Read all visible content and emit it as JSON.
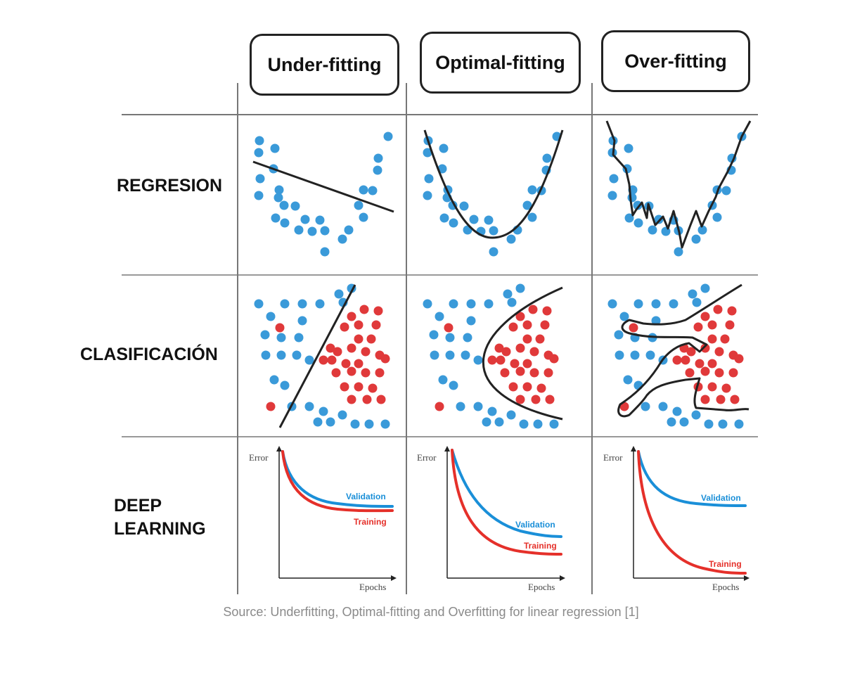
{
  "columns": [
    {
      "label": "Under-fitting"
    },
    {
      "label": "Optimal-fitting"
    },
    {
      "label": "Over-fitting"
    }
  ],
  "rows": [
    {
      "label": "REGRESION"
    },
    {
      "label": "CLASIFICACIÓN"
    },
    {
      "label_line1": "DEEP",
      "label_line2": "LEARNING"
    }
  ],
  "deep_learning_plot": {
    "ylabel": "Error",
    "xlabel": "Epochs",
    "validation_label": "Validation",
    "training_label": "Training"
  },
  "colors": {
    "blue_point": "#3a9ad9",
    "red_point": "#e0393a",
    "fit_line": "#222222",
    "validation_curve": "#1a8fd8",
    "training_curve": "#e5302a",
    "grid": "#888888"
  },
  "caption": "Source: Underfitting, Optimal-fitting and Overfitting for linear regression [1]"
}
